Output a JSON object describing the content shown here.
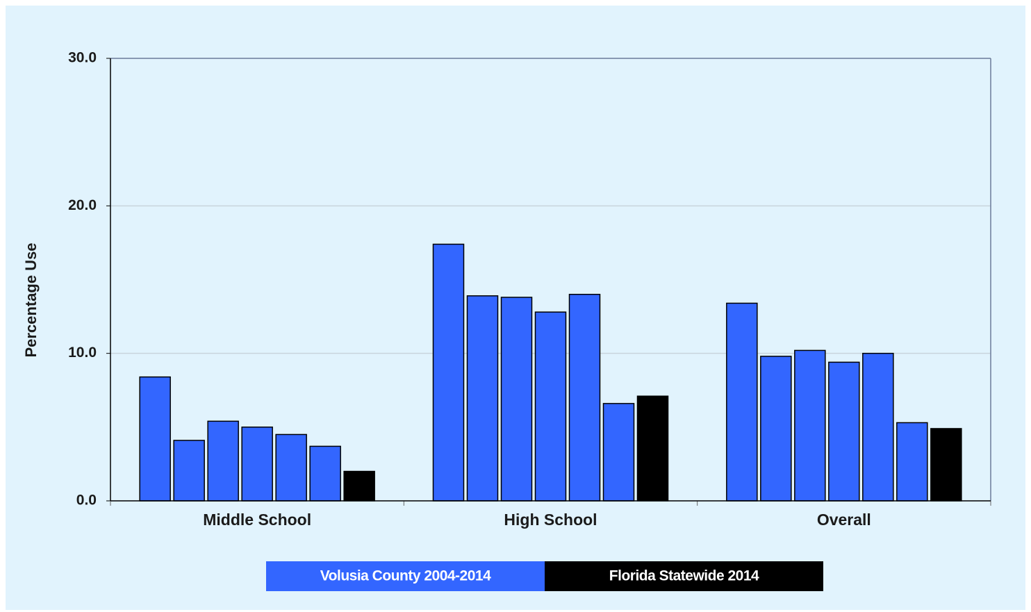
{
  "chart_data": {
    "type": "bar",
    "y_label": "Percentage Use",
    "categories": [
      "Middle School",
      "High School",
      "Overall"
    ],
    "series": [
      {
        "name": "Volusia County 2004-2014",
        "color": "#3366ff",
        "values": [
          [
            8.4,
            4.1,
            5.4,
            5.0,
            4.5,
            3.7
          ],
          [
            17.4,
            13.9,
            13.8,
            12.8,
            14.0,
            6.6
          ],
          [
            13.4,
            9.8,
            10.2,
            9.4,
            10.0,
            5.3
          ]
        ]
      },
      {
        "name": "Florida Statewide 2014",
        "color": "#000000",
        "values": [
          2.0,
          7.1,
          4.9
        ]
      }
    ],
    "ylim": [
      0,
      30
    ],
    "yticks": [
      {
        "value": 0,
        "label": "0.0"
      },
      {
        "value": 10,
        "label": "10.0"
      },
      {
        "value": 20,
        "label": "20.0"
      },
      {
        "value": 30,
        "label": "30.0"
      }
    ],
    "grid": true
  }
}
